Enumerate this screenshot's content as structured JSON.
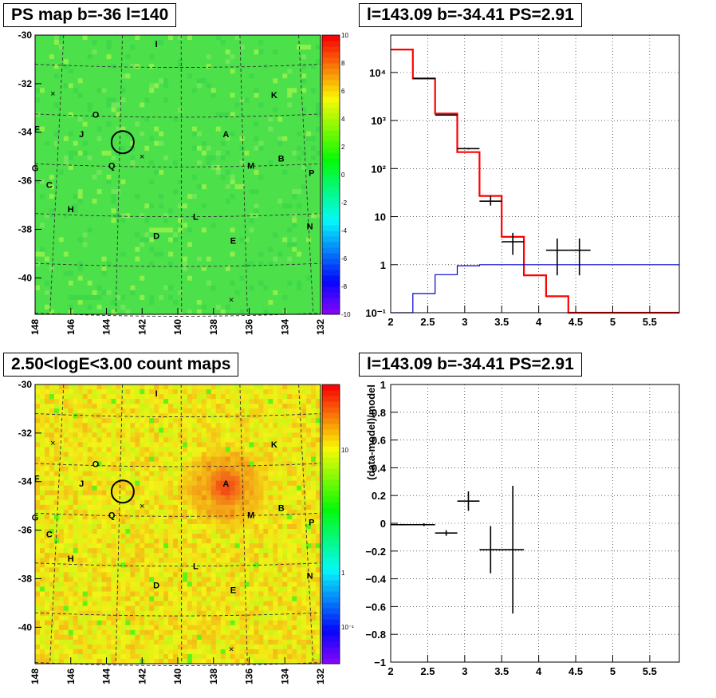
{
  "panels": {
    "tl_title": "PS map b=-36 l=140",
    "tr_title": "l=143.09 b=-34.41 PS=2.91",
    "bl_title": "2.50<logE<3.00 count maps",
    "br_title": "l=143.09 b=-34.41 PS=2.91"
  },
  "chart_data": [
    {
      "type": "heatmap",
      "title": "PS map b=-36 l=140",
      "x_ticks": [
        "148",
        "146",
        "144",
        "142",
        "140",
        "138",
        "136",
        "134",
        "132"
      ],
      "y_ticks": [
        "-30",
        "-32",
        "-34",
        "-36",
        "-38",
        "-40"
      ],
      "xlim": [
        148,
        132
      ],
      "ylim": [
        -41.5,
        -30
      ],
      "colorbar": {
        "min": -10,
        "max": 10,
        "ticks": [
          "10",
          "8",
          "6",
          "4",
          "2",
          "0",
          "-2",
          "-4",
          "-6",
          "-8",
          "-10"
        ]
      },
      "source_labels": [
        {
          "t": "I",
          "l": 141.2,
          "b": -30.5
        },
        {
          "t": "K",
          "l": 134.6,
          "b": -32.6
        },
        {
          "t": "O",
          "l": 144.6,
          "b": -33.4
        },
        {
          "t": "F",
          "l": 147.9,
          "b": -34.0
        },
        {
          "t": "J",
          "l": 145.4,
          "b": -34.2
        },
        {
          "t": "A",
          "l": 137.3,
          "b": -34.2
        },
        {
          "t": "B",
          "l": 134.2,
          "b": -35.2
        },
        {
          "t": "M",
          "l": 135.9,
          "b": -35.5
        },
        {
          "t": "Q",
          "l": 143.7,
          "b": -35.5
        },
        {
          "t": "G",
          "l": 148.0,
          "b": -35.6
        },
        {
          "t": "P",
          "l": 132.5,
          "b": -35.8
        },
        {
          "t": "C",
          "l": 147.2,
          "b": -36.3
        },
        {
          "t": "H",
          "l": 146.0,
          "b": -37.3
        },
        {
          "t": "L",
          "l": 139.0,
          "b": -37.6
        },
        {
          "t": "N",
          "l": 132.6,
          "b": -38.0
        },
        {
          "t": "D",
          "l": 141.2,
          "b": -38.4
        },
        {
          "t": "E",
          "l": 136.9,
          "b": -38.6
        }
      ],
      "markers": [
        {
          "l": 147.0,
          "b": -32.4
        },
        {
          "l": 142.0,
          "b": -35.0
        },
        {
          "l": 137.0,
          "b": -40.9
        }
      ],
      "candidate": {
        "l": 143.09,
        "b": -34.41
      }
    },
    {
      "type": "line",
      "title": "l=143.09 b=-34.41 PS=2.91",
      "yscale": "log",
      "xlim": [
        2,
        5.9
      ],
      "ylim": [
        0.1,
        60000
      ],
      "x_ticks": [
        "2",
        "2.5",
        "3",
        "3.5",
        "4",
        "4.5",
        "5",
        "5.5"
      ],
      "y_ticks": [
        "10⁻¹",
        "1",
        "10",
        "10²",
        "10³",
        "10⁴"
      ],
      "series": [
        {
          "color": "#ff0000",
          "edges": [
            2,
            2.3,
            2.6,
            2.9,
            3.2,
            3.5,
            3.8,
            4.1,
            4.4,
            5.9
          ],
          "values": [
            30000,
            7500,
            1400,
            220,
            27,
            3.8,
            0.6,
            0.22,
            0.1
          ]
        },
        {
          "color": "#0000cc",
          "edges": [
            2,
            2.3,
            2.6,
            2.9,
            3.2,
            5.9
          ],
          "values": [
            0.1,
            0.25,
            0.62,
            0.95,
            1.0
          ]
        }
      ],
      "points": [
        {
          "x": 2.45,
          "xerr": 0.15,
          "y": 7500,
          "ylo": 7500,
          "yhi": 7500
        },
        {
          "x": 2.75,
          "xerr": 0.15,
          "y": 1300,
          "ylo": 1300,
          "yhi": 1300
        },
        {
          "x": 3.05,
          "xerr": 0.15,
          "y": 260,
          "ylo": 250,
          "yhi": 270
        },
        {
          "x": 3.35,
          "xerr": 0.15,
          "y": 21,
          "ylo": 17,
          "yhi": 27
        },
        {
          "x": 3.65,
          "xerr": 0.15,
          "y": 3,
          "ylo": 1.6,
          "yhi": 4.6
        },
        {
          "x": 4.25,
          "xerr": 0.15,
          "y": 2,
          "ylo": 0.6,
          "yhi": 3.5
        },
        {
          "x": 4.55,
          "xerr": 0.15,
          "y": 2,
          "ylo": 0.6,
          "yhi": 3.5
        }
      ]
    },
    {
      "type": "heatmap",
      "title": "2.50<logE<3.00 count maps",
      "x_ticks": [
        "148",
        "146",
        "144",
        "142",
        "140",
        "138",
        "136",
        "134",
        "132"
      ],
      "y_ticks": [
        "-30",
        "-32",
        "-34",
        "-36",
        "-38",
        "-40"
      ],
      "xlim": [
        148,
        132
      ],
      "ylim": [
        -41.5,
        -30
      ],
      "colorbar": {
        "scale": "log",
        "ticks": [
          "10",
          "1",
          "10⁻¹"
        ]
      },
      "source_labels": [
        {
          "t": "I",
          "l": 141.2,
          "b": -30.5
        },
        {
          "t": "K",
          "l": 134.6,
          "b": -32.6
        },
        {
          "t": "O",
          "l": 144.6,
          "b": -33.4
        },
        {
          "t": "F",
          "l": 147.9,
          "b": -34.0
        },
        {
          "t": "J",
          "l": 145.4,
          "b": -34.2
        },
        {
          "t": "A",
          "l": 137.3,
          "b": -34.2
        },
        {
          "t": "B",
          "l": 134.2,
          "b": -35.2
        },
        {
          "t": "M",
          "l": 135.9,
          "b": -35.5
        },
        {
          "t": "Q",
          "l": 143.7,
          "b": -35.5
        },
        {
          "t": "G",
          "l": 148.0,
          "b": -35.6
        },
        {
          "t": "P",
          "l": 132.5,
          "b": -35.8
        },
        {
          "t": "C",
          "l": 147.2,
          "b": -36.3
        },
        {
          "t": "H",
          "l": 146.0,
          "b": -37.3
        },
        {
          "t": "L",
          "l": 139.0,
          "b": -37.6
        },
        {
          "t": "N",
          "l": 132.6,
          "b": -38.0
        },
        {
          "t": "D",
          "l": 141.2,
          "b": -38.4
        },
        {
          "t": "E",
          "l": 136.9,
          "b": -38.6
        }
      ],
      "markers": [
        {
          "l": 147.0,
          "b": -32.4
        },
        {
          "l": 142.0,
          "b": -35.0
        },
        {
          "l": 137.0,
          "b": -40.9
        }
      ],
      "candidate": {
        "l": 143.09,
        "b": -34.41
      },
      "hotspot": {
        "l": 137.3,
        "b": -34.2
      }
    },
    {
      "type": "scatter",
      "title": "l=143.09 b=-34.41 PS=2.91",
      "ylabel": "(data-model)/model",
      "xlim": [
        2,
        5.9
      ],
      "ylim": [
        -1,
        1
      ],
      "x_ticks": [
        "2",
        "2.5",
        "3",
        "3.5",
        "4",
        "4.5",
        "5",
        "5.5"
      ],
      "y_ticks": [
        "1",
        "0.8",
        "0.6",
        "0.4",
        "0.2",
        "0",
        "−0.2",
        "−0.4",
        "−0.6",
        "−0.8",
        "−1"
      ],
      "points": [
        {
          "x": 2.15,
          "xerr": 0.15,
          "y": -0.01,
          "yerr": 0.005
        },
        {
          "x": 2.45,
          "xerr": 0.15,
          "y": -0.01,
          "yerr": 0.01
        },
        {
          "x": 2.75,
          "xerr": 0.15,
          "y": -0.07,
          "yerr": 0.02
        },
        {
          "x": 3.05,
          "xerr": 0.15,
          "y": 0.16,
          "yerr": 0.07
        },
        {
          "x": 3.35,
          "xerr": 0.15,
          "y": -0.19,
          "yerr": 0.17
        },
        {
          "x": 3.65,
          "xerr": 0.15,
          "y": -0.19,
          "yerr": 0.46
        }
      ]
    }
  ]
}
